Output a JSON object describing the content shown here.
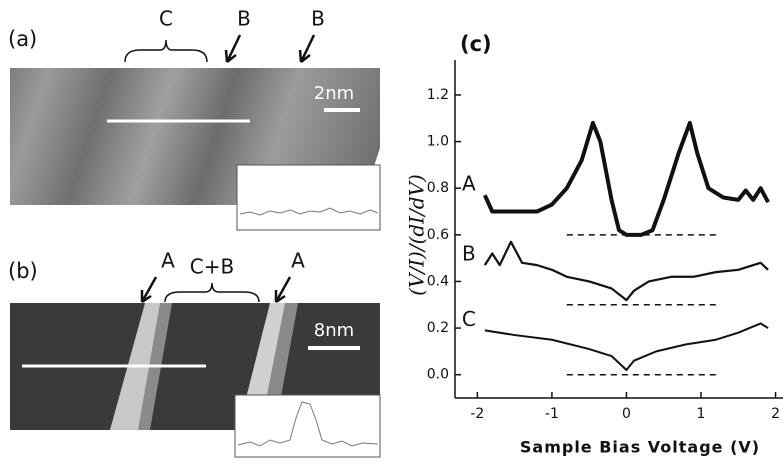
{
  "figure": {
    "panel_a": {
      "label": "(a)",
      "marks": [
        "C",
        "B",
        "B"
      ],
      "scale": "2nm"
    },
    "panel_b": {
      "label": "(b)",
      "marks": [
        "A",
        "C+B",
        "A"
      ],
      "scale": "8nm"
    }
  },
  "chart_data": {
    "type": "line",
    "panel_label": "(c)",
    "x_label": "Sample Bias Voltage (V)",
    "y_label": "(V/I)/(dI/dV)",
    "xlim": [
      -2.3,
      2.1
    ],
    "ylim": [
      -0.1,
      1.35
    ],
    "xticks": [
      -2,
      -1,
      0,
      1,
      2
    ],
    "yticks": [
      {
        "value": 0,
        "label": "0.0"
      },
      {
        "value": 0.2,
        "label": "0.2"
      },
      {
        "value": 0.4,
        "label": "0.4"
      },
      {
        "value": 0.6,
        "label": "0.6"
      },
      {
        "value": 0.8,
        "label": "0.8"
      },
      {
        "value": 1,
        "label": "1.0"
      },
      {
        "value": 1.2,
        "label": "1.2"
      }
    ],
    "baselines": [
      0.6,
      0.3,
      0.0
    ],
    "baseline_x": [
      -0.8,
      1.2
    ],
    "series": [
      {
        "name": "A",
        "color": "#111",
        "width": 4,
        "x": [
          -1.9,
          -1.8,
          -1.5,
          -1.2,
          -1.0,
          -0.8,
          -0.6,
          -0.45,
          -0.35,
          -0.2,
          -0.1,
          0,
          0.2,
          0.35,
          0.5,
          0.7,
          0.85,
          0.95,
          1.1,
          1.3,
          1.5,
          1.6,
          1.7,
          1.8,
          1.9
        ],
        "values": [
          0.77,
          0.7,
          0.7,
          0.7,
          0.73,
          0.8,
          0.92,
          1.08,
          1.0,
          0.75,
          0.62,
          0.6,
          0.6,
          0.62,
          0.75,
          0.95,
          1.08,
          0.95,
          0.8,
          0.76,
          0.75,
          0.79,
          0.75,
          0.8,
          0.74
        ]
      },
      {
        "name": "B",
        "color": "#111",
        "width": 2.2,
        "x": [
          -1.9,
          -1.8,
          -1.7,
          -1.55,
          -1.4,
          -1.2,
          -1.0,
          -0.8,
          -0.5,
          -0.2,
          0,
          0.1,
          0.3,
          0.6,
          0.9,
          1.2,
          1.5,
          1.8,
          1.9
        ],
        "values": [
          0.47,
          0.52,
          0.47,
          0.57,
          0.48,
          0.47,
          0.45,
          0.42,
          0.4,
          0.37,
          0.32,
          0.36,
          0.4,
          0.42,
          0.42,
          0.44,
          0.45,
          0.48,
          0.45
        ]
      },
      {
        "name": "C",
        "color": "#111",
        "width": 2,
        "x": [
          -1.9,
          -1.5,
          -1.0,
          -0.5,
          -0.2,
          0,
          0.1,
          0.4,
          0.8,
          1.2,
          1.5,
          1.8,
          1.9
        ],
        "values": [
          0.19,
          0.17,
          0.15,
          0.11,
          0.08,
          0.02,
          0.06,
          0.1,
          0.13,
          0.15,
          0.18,
          0.22,
          0.2
        ]
      }
    ]
  }
}
